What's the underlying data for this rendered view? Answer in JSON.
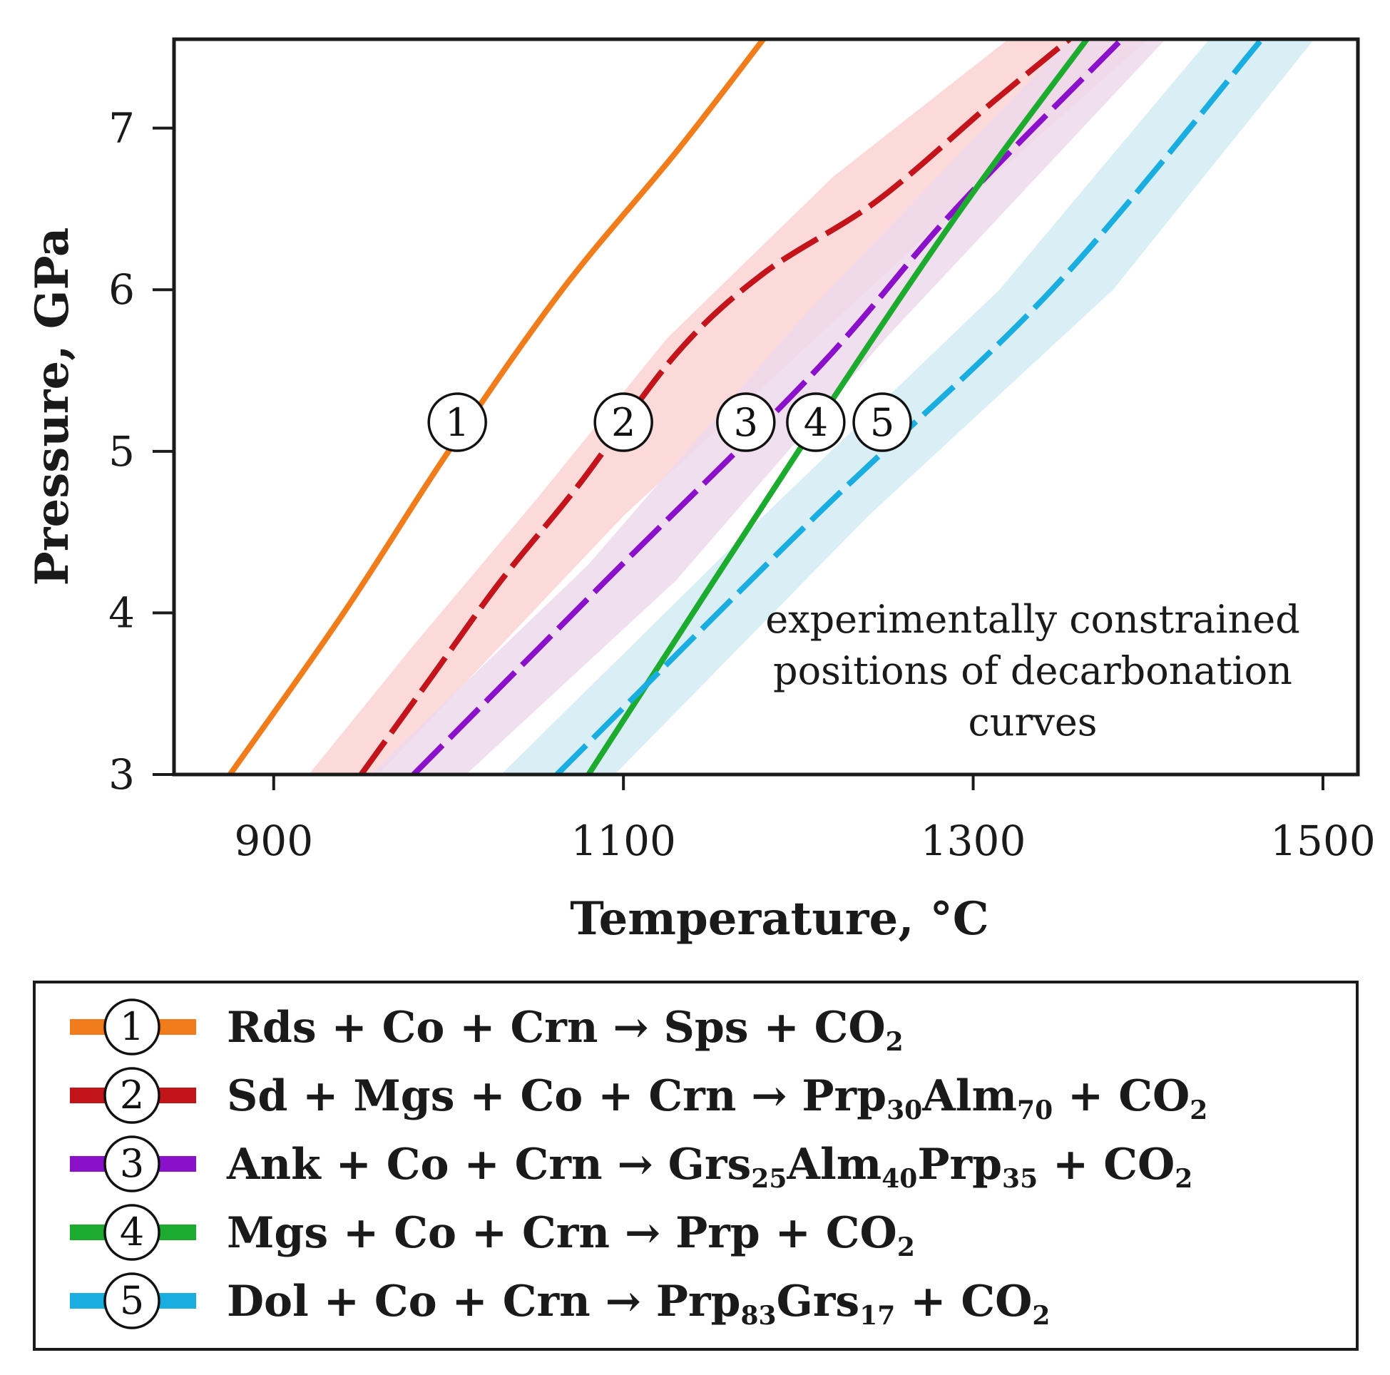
{
  "chart_data": {
    "type": "line",
    "xlabel": "Temperature, °C",
    "ylabel": "Pressure, GPa",
    "xlim": [
      843,
      1520
    ],
    "ylim": [
      3,
      7.55
    ],
    "xticks": [
      900,
      1100,
      1300,
      1500
    ],
    "yticks": [
      3,
      4,
      5,
      6,
      7
    ],
    "xtick_labels": [
      "900",
      "1100",
      "1300",
      "1500"
    ],
    "ytick_labels": [
      "3",
      "4",
      "5",
      "6",
      "7"
    ],
    "annotation_lines": [
      "experimentally constrained",
      "positions of decarbonation",
      "curves"
    ],
    "series": [
      {
        "id": 1,
        "name": "Rds + Co + Crn → Sps + CO2",
        "color": "#f07c1b",
        "style": "solid",
        "marker": "1",
        "marker_at": [
          1005,
          5.18
        ],
        "points": [
          [
            875,
            3.0
          ],
          [
            940,
            4.0
          ],
          [
            1000,
            5.0
          ],
          [
            1065,
            6.0
          ],
          [
            1130,
            6.85
          ],
          [
            1180,
            7.55
          ]
        ]
      },
      {
        "id": 2,
        "name": "Sd + Mgs + Co + Crn → Prp30Alm70 + CO2",
        "color": "#c4141b",
        "style": "dashed",
        "marker": "2",
        "marker_at": [
          1100,
          5.18
        ],
        "band": {
          "color": "#fbd3d3",
          "lower": [
            [
              960,
              3.0
            ],
            [
              1030,
              3.8
            ],
            [
              1100,
              4.6
            ],
            [
              1180,
              5.4
            ],
            [
              1270,
              6.3
            ],
            [
              1400,
              7.55
            ]
          ],
          "upper": [
            [
              920,
              3.0
            ],
            [
              980,
              3.8
            ],
            [
              1050,
              4.7
            ],
            [
              1125,
              5.7
            ],
            [
              1220,
              6.7
            ],
            [
              1320,
              7.55
            ]
          ]
        },
        "points": [
          [
            950,
            3.0
          ],
          [
            990,
            3.6
          ],
          [
            1030,
            4.2
          ],
          [
            1075,
            4.8
          ],
          [
            1130,
            5.6
          ],
          [
            1180,
            6.1
          ],
          [
            1245,
            6.55
          ],
          [
            1310,
            7.15
          ],
          [
            1355,
            7.55
          ]
        ]
      },
      {
        "id": 3,
        "name": "Ank + Co + Crn → Grs25Alm40Prp35 + CO2",
        "color": "#8b10c9",
        "style": "dashed",
        "marker": "3",
        "marker_at": [
          1170,
          5.18
        ],
        "band": {
          "color": "#edd9ec",
          "lower": [
            [
              1010,
              3.0
            ],
            [
              1130,
              4.2
            ],
            [
              1250,
              5.7
            ],
            [
              1410,
              7.55
            ]
          ],
          "upper": [
            [
              955,
              3.0
            ],
            [
              1080,
              4.3
            ],
            [
              1200,
              5.8
            ],
            [
              1355,
              7.55
            ]
          ]
        },
        "points": [
          [
            980,
            3.0
          ],
          [
            1090,
            4.2
          ],
          [
            1210,
            5.5
          ],
          [
            1290,
            6.5
          ],
          [
            1385,
            7.55
          ]
        ]
      },
      {
        "id": 4,
        "name": "Mgs + Co + Crn → Prp + CO2",
        "color": "#1dab2f",
        "style": "solid",
        "marker": "4",
        "marker_at": [
          1210,
          5.18
        ],
        "points": [
          [
            1080,
            3.0
          ],
          [
            1200,
            5.0
          ],
          [
            1290,
            6.45
          ],
          [
            1365,
            7.55
          ]
        ]
      },
      {
        "id": 5,
        "name": "Dol + Co + Crn → Prp83Grs17 + CO2",
        "color": "#1aaee0",
        "style": "dashed",
        "marker": "5",
        "marker_at": [
          1248,
          5.18
        ],
        "band": {
          "color": "#d3ebf3",
          "lower": [
            [
              1095,
              3.0
            ],
            [
              1240,
              4.6
            ],
            [
              1380,
              6.0
            ],
            [
              1495,
              7.55
            ]
          ],
          "upper": [
            [
              1030,
              3.0
            ],
            [
              1180,
              4.6
            ],
            [
              1315,
              6.0
            ],
            [
              1435,
              7.55
            ]
          ]
        },
        "points": [
          [
            1062,
            3.0
          ],
          [
            1210,
            4.6
          ],
          [
            1345,
            6.0
          ],
          [
            1465,
            7.55
          ]
        ]
      }
    ]
  },
  "legend": {
    "items": [
      {
        "marker": "1",
        "color": "#f07c1b",
        "parts": [
          [
            "Rds + Co + Crn → Sps + CO",
            ""
          ],
          [
            "2",
            "sub"
          ]
        ]
      },
      {
        "marker": "2",
        "color": "#c4141b",
        "parts": [
          [
            "Sd + Mgs + Co + Crn → Prp",
            ""
          ],
          [
            "30",
            "sub"
          ],
          [
            "Alm",
            ""
          ],
          [
            "70",
            "sub"
          ],
          [
            " + CO",
            ""
          ],
          [
            "2",
            "sub"
          ]
        ]
      },
      {
        "marker": "3",
        "color": "#8b10c9",
        "parts": [
          [
            "Ank + Co + Crn → Grs",
            ""
          ],
          [
            "25",
            "sub"
          ],
          [
            "Alm",
            ""
          ],
          [
            "40",
            "sub"
          ],
          [
            "Prp",
            ""
          ],
          [
            "35",
            "sub"
          ],
          [
            " + CO",
            ""
          ],
          [
            "2",
            "sub"
          ]
        ]
      },
      {
        "marker": "4",
        "color": "#1dab2f",
        "parts": [
          [
            "Mgs + Co + Crn → Prp + CO",
            ""
          ],
          [
            "2",
            "sub"
          ]
        ]
      },
      {
        "marker": "5",
        "color": "#1aaee0",
        "parts": [
          [
            "Dol + Co + Crn → Prp",
            ""
          ],
          [
            "83",
            "sub"
          ],
          [
            "Grs",
            ""
          ],
          [
            "17",
            "sub"
          ],
          [
            " + CO",
            ""
          ],
          [
            "2",
            "sub"
          ]
        ]
      }
    ]
  }
}
